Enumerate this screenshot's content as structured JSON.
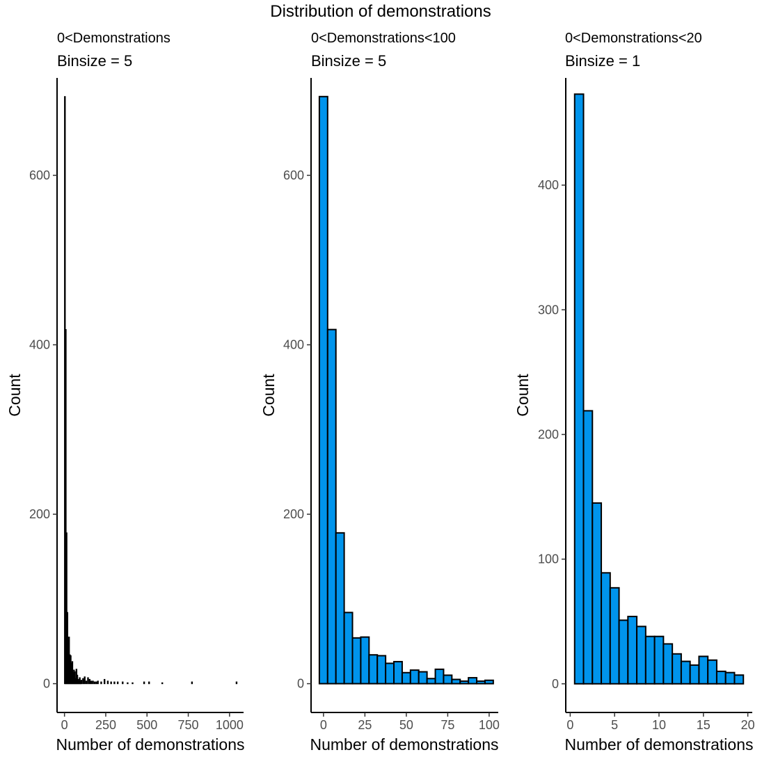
{
  "figure": {
    "title": "Distribution of demonstrations"
  },
  "chart_data": [
    {
      "type": "bar",
      "subtitle": "0<Demonstrations",
      "caption": "Binsize = 5",
      "xlabel": "Number of demonstrations",
      "ylabel": "Count",
      "xlim": [
        -45,
        1085
      ],
      "ylim": [
        -34,
        715
      ],
      "xticks": [
        0,
        250,
        500,
        750,
        1000
      ],
      "yticks": [
        0,
        200,
        400,
        600
      ],
      "bin_width": 5,
      "bar_fill": "#000000",
      "bar_stroke": "#000000",
      "bins_x": [
        2.5,
        7.5,
        12.5,
        17.5,
        22.5,
        27.5,
        32.5,
        37.5,
        42.5,
        47.5,
        52.5,
        57.5,
        62.5,
        67.5,
        72.5,
        77.5,
        82.5,
        87.5,
        92.5,
        97.5,
        102.5,
        112.5,
        122.5,
        132.5,
        142.5,
        152.5,
        162.5,
        172.5,
        182.5,
        192.5,
        202.5,
        222.5,
        242.5,
        262.5,
        282.5,
        302.5,
        322.5,
        352.5,
        382.5,
        412.5,
        482.5,
        512.5,
        592.5,
        772.5,
        1042.5
      ],
      "counts": [
        693,
        418,
        178,
        84,
        54,
        55,
        34,
        33,
        24,
        26,
        13,
        16,
        14,
        6,
        17,
        10,
        5,
        3,
        7,
        3,
        4,
        6,
        8,
        3,
        7,
        5,
        3,
        3,
        2,
        2,
        3,
        2,
        5,
        3,
        2,
        2,
        2,
        2,
        1,
        1,
        2,
        2,
        1,
        2,
        2
      ]
    },
    {
      "type": "bar",
      "subtitle": "0<Demonstrations<100",
      "caption": "Binsize = 5",
      "xlabel": "Number of demonstrations",
      "ylabel": "Count",
      "xlim": [
        -7.5,
        105.5
      ],
      "ylim": [
        -34,
        715
      ],
      "xticks": [
        0,
        25,
        50,
        75,
        100
      ],
      "yticks": [
        0,
        200,
        400,
        600
      ],
      "bin_width": 5,
      "bar_fill": "#0094ec",
      "bar_stroke": "#000000",
      "bins_x": [
        0,
        5,
        10,
        15,
        20,
        25,
        30,
        35,
        40,
        45,
        50,
        55,
        60,
        65,
        70,
        75,
        80,
        85,
        90,
        95,
        100
      ],
      "counts": [
        693,
        418,
        178,
        84,
        54,
        55,
        34,
        33,
        24,
        26,
        13,
        16,
        14,
        6,
        17,
        10,
        5,
        3,
        7,
        3,
        4
      ]
    },
    {
      "type": "bar",
      "subtitle": "0<Demonstrations<20",
      "caption": "Binsize = 1",
      "xlabel": "Number of demonstrations",
      "ylabel": "Count",
      "xlim": [
        -0.5,
        20.5
      ],
      "ylim": [
        -23,
        486
      ],
      "xticks": [
        0,
        5,
        10,
        15,
        20
      ],
      "yticks": [
        0,
        100,
        200,
        300,
        400
      ],
      "bin_width": 1,
      "bar_fill": "#0094ec",
      "bar_stroke": "#000000",
      "bins_x": [
        1,
        2,
        3,
        4,
        5,
        6,
        7,
        8,
        9,
        10,
        11,
        12,
        13,
        14,
        15,
        16,
        17,
        18,
        19
      ],
      "counts": [
        473,
        219,
        145,
        89,
        77,
        51,
        54,
        46,
        38,
        38,
        32,
        24,
        18,
        15,
        22,
        19,
        10,
        9,
        7
      ]
    }
  ]
}
